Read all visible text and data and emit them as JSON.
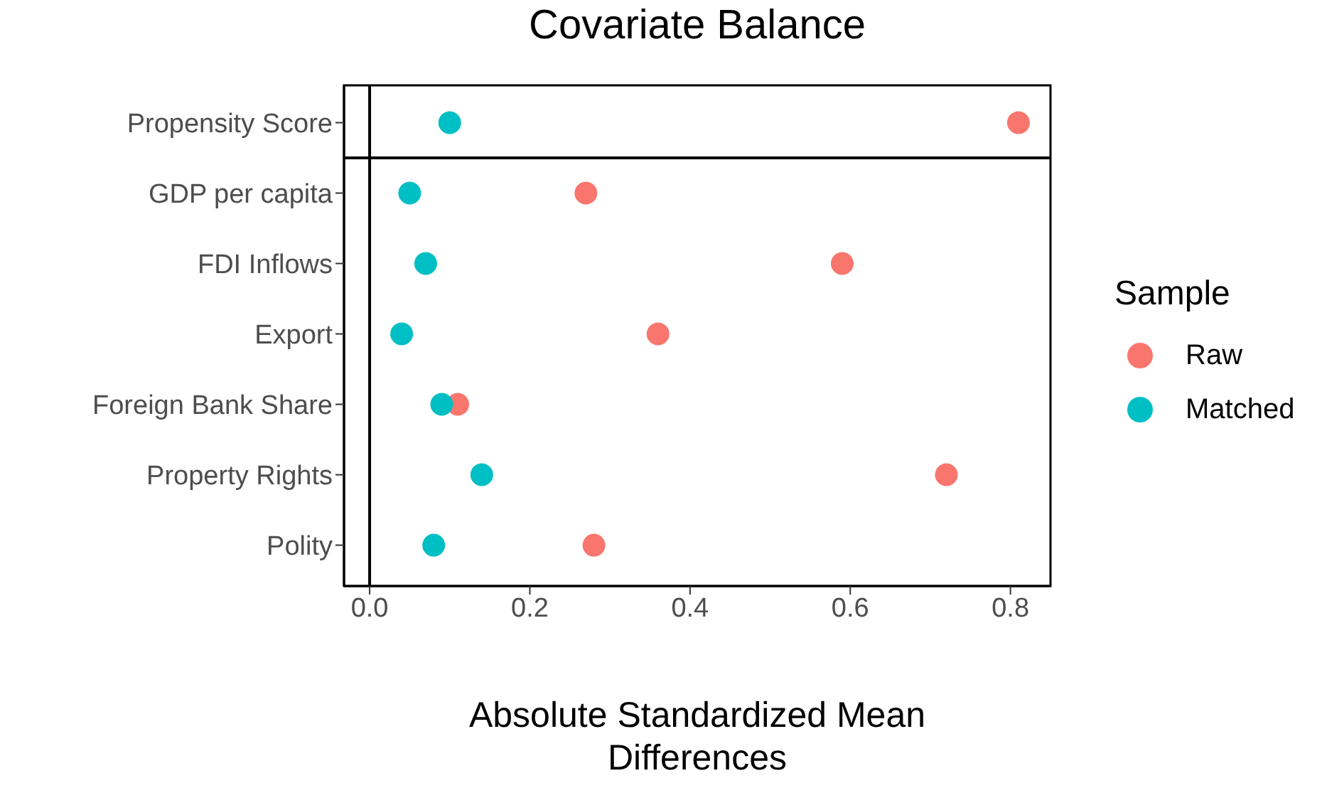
{
  "chart_data": {
    "type": "scatter",
    "title": "Covariate Balance",
    "xlabel": "Absolute Standardized Mean Differences",
    "legend_title": "Sample",
    "orientation": "horizontal",
    "categories": [
      "Propensity Score",
      "GDP per capita",
      "FDI Inflows",
      "Export",
      "Foreign Bank Share",
      "Property Rights",
      "Polity"
    ],
    "series": [
      {
        "name": "Raw",
        "color": "#f8766d",
        "values": [
          0.81,
          0.27,
          0.59,
          0.36,
          0.11,
          0.72,
          0.28
        ]
      },
      {
        "name": "Matched",
        "color": "#00bfc4",
        "values": [
          0.1,
          0.05,
          0.07,
          0.04,
          0.09,
          0.14,
          0.08
        ]
      }
    ],
    "xlim": [
      -0.032,
      0.85
    ],
    "xticks": [
      {
        "value": 0,
        "label": "0.0"
      },
      {
        "value": 0.2,
        "label": "0.2"
      },
      {
        "value": 0.4,
        "label": "0.4"
      },
      {
        "value": 0.6,
        "label": "0.6"
      },
      {
        "value": 0.8,
        "label": "0.8"
      }
    ],
    "ref_lines": [
      {
        "axis": "x",
        "value": 0,
        "color": "#000000"
      }
    ],
    "legend": "right",
    "marker": "circle"
  }
}
